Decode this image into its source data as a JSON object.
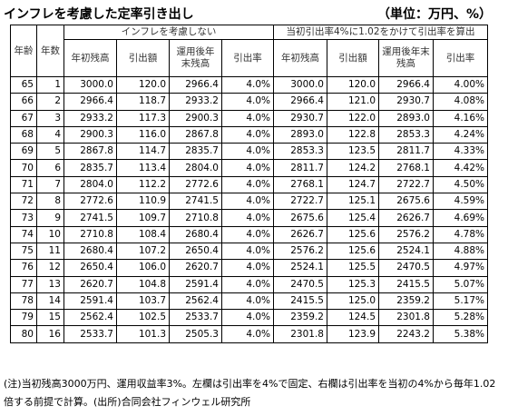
{
  "title": "インフレを考慮した定率引き出し",
  "unit_label": "（単位：万円、%）",
  "headers": {
    "age": "年齢",
    "years": "年数",
    "left_group": "インフレを考慮しない",
    "right_group": "当初引出率4%に1.02をかけて引出率を算出",
    "start_balance": "年初残高",
    "withdrawal": "引出額",
    "end_balance": "運用後年末残高",
    "rate": "引出率"
  },
  "rows": [
    {
      "age": "65",
      "year": "1",
      "l_start": "3000.0",
      "l_wd": "120.0",
      "l_end": "2966.4",
      "l_rate": "4.0%",
      "r_start": "3000.0",
      "r_wd": "120.0",
      "r_end": "2966.4",
      "r_rate": "4.00%"
    },
    {
      "age": "66",
      "year": "2",
      "l_start": "2966.4",
      "l_wd": "118.7",
      "l_end": "2933.2",
      "l_rate": "4.0%",
      "r_start": "2966.4",
      "r_wd": "121.0",
      "r_end": "2930.7",
      "r_rate": "4.08%"
    },
    {
      "age": "67",
      "year": "3",
      "l_start": "2933.2",
      "l_wd": "117.3",
      "l_end": "2900.3",
      "l_rate": "4.0%",
      "r_start": "2930.7",
      "r_wd": "122.0",
      "r_end": "2893.0",
      "r_rate": "4.16%"
    },
    {
      "age": "68",
      "year": "4",
      "l_start": "2900.3",
      "l_wd": "116.0",
      "l_end": "2867.8",
      "l_rate": "4.0%",
      "r_start": "2893.0",
      "r_wd": "122.8",
      "r_end": "2853.3",
      "r_rate": "4.24%"
    },
    {
      "age": "69",
      "year": "5",
      "l_start": "2867.8",
      "l_wd": "114.7",
      "l_end": "2835.7",
      "l_rate": "4.0%",
      "r_start": "2853.3",
      "r_wd": "123.5",
      "r_end": "2811.7",
      "r_rate": "4.33%"
    },
    {
      "age": "70",
      "year": "6",
      "l_start": "2835.7",
      "l_wd": "113.4",
      "l_end": "2804.0",
      "l_rate": "4.0%",
      "r_start": "2811.7",
      "r_wd": "124.2",
      "r_end": "2768.1",
      "r_rate": "4.42%"
    },
    {
      "age": "71",
      "year": "7",
      "l_start": "2804.0",
      "l_wd": "112.2",
      "l_end": "2772.6",
      "l_rate": "4.0%",
      "r_start": "2768.1",
      "r_wd": "124.7",
      "r_end": "2722.7",
      "r_rate": "4.50%"
    },
    {
      "age": "72",
      "year": "8",
      "l_start": "2772.6",
      "l_wd": "110.9",
      "l_end": "2741.5",
      "l_rate": "4.0%",
      "r_start": "2722.7",
      "r_wd": "125.1",
      "r_end": "2675.6",
      "r_rate": "4.59%"
    },
    {
      "age": "73",
      "year": "9",
      "l_start": "2741.5",
      "l_wd": "109.7",
      "l_end": "2710.8",
      "l_rate": "4.0%",
      "r_start": "2675.6",
      "r_wd": "125.4",
      "r_end": "2626.7",
      "r_rate": "4.69%"
    },
    {
      "age": "74",
      "year": "10",
      "l_start": "2710.8",
      "l_wd": "108.4",
      "l_end": "2680.4",
      "l_rate": "4.0%",
      "r_start": "2626.7",
      "r_wd": "125.6",
      "r_end": "2576.2",
      "r_rate": "4.78%"
    },
    {
      "age": "75",
      "year": "11",
      "l_start": "2680.4",
      "l_wd": "107.2",
      "l_end": "2650.4",
      "l_rate": "4.0%",
      "r_start": "2576.2",
      "r_wd": "125.6",
      "r_end": "2524.1",
      "r_rate": "4.88%"
    },
    {
      "age": "76",
      "year": "12",
      "l_start": "2650.4",
      "l_wd": "106.0",
      "l_end": "2620.7",
      "l_rate": "4.0%",
      "r_start": "2524.1",
      "r_wd": "125.5",
      "r_end": "2470.5",
      "r_rate": "4.97%"
    },
    {
      "age": "77",
      "year": "13",
      "l_start": "2620.7",
      "l_wd": "104.8",
      "l_end": "2591.4",
      "l_rate": "4.0%",
      "r_start": "2470.5",
      "r_wd": "125.3",
      "r_end": "2415.5",
      "r_rate": "5.07%"
    },
    {
      "age": "78",
      "year": "14",
      "l_start": "2591.4",
      "l_wd": "103.7",
      "l_end": "2562.4",
      "l_rate": "4.0%",
      "r_start": "2415.5",
      "r_wd": "125.0",
      "r_end": "2359.2",
      "r_rate": "5.17%"
    },
    {
      "age": "79",
      "year": "15",
      "l_start": "2562.4",
      "l_wd": "102.5",
      "l_end": "2533.7",
      "l_rate": "4.0%",
      "r_start": "2359.2",
      "r_wd": "124.5",
      "r_end": "2301.8",
      "r_rate": "5.28%"
    },
    {
      "age": "80",
      "year": "16",
      "l_start": "2533.7",
      "l_wd": "101.3",
      "l_end": "2505.3",
      "l_rate": "4.0%",
      "r_start": "2301.8",
      "r_wd": "123.9",
      "r_end": "2243.2",
      "r_rate": "5.38%"
    }
  ],
  "note": "(注)当初残高3000万円、運用収益率3%。左欄は引出率を4%で固定、右欄は引出率を当初の4%から毎年1.02倍する前提で計算。(出所)合同会社フィンウェル研究所"
}
